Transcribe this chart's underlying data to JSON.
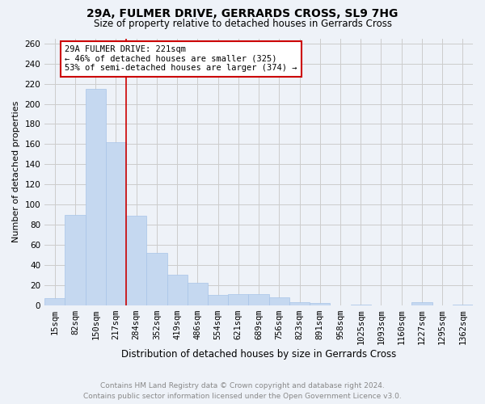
{
  "title": "29A, FULMER DRIVE, GERRARDS CROSS, SL9 7HG",
  "subtitle": "Size of property relative to detached houses in Gerrards Cross",
  "xlabel": "Distribution of detached houses by size in Gerrards Cross",
  "ylabel": "Number of detached properties",
  "footer_line1": "Contains HM Land Registry data © Crown copyright and database right 2024.",
  "footer_line2": "Contains public sector information licensed under the Open Government Licence v3.0.",
  "categories": [
    "15sqm",
    "82sqm",
    "150sqm",
    "217sqm",
    "284sqm",
    "352sqm",
    "419sqm",
    "486sqm",
    "554sqm",
    "621sqm",
    "689sqm",
    "756sqm",
    "823sqm",
    "891sqm",
    "958sqm",
    "1025sqm",
    "1093sqm",
    "1160sqm",
    "1227sqm",
    "1295sqm",
    "1362sqm"
  ],
  "values": [
    7,
    90,
    215,
    162,
    89,
    52,
    30,
    22,
    10,
    11,
    11,
    8,
    3,
    2,
    0,
    1,
    0,
    0,
    3,
    0,
    1
  ],
  "bar_color": "#c5d8f0",
  "bar_edge_color": "#a8c4e8",
  "property_line_x": 3.5,
  "annotation_text": "29A FULMER DRIVE: 221sqm\n← 46% of detached houses are smaller (325)\n53% of semi-detached houses are larger (374) →",
  "annotation_box_facecolor": "#ffffff",
  "annotation_box_edgecolor": "#cc0000",
  "property_line_color": "#cc0000",
  "ylim": [
    0,
    265
  ],
  "yticks": [
    0,
    20,
    40,
    60,
    80,
    100,
    120,
    140,
    160,
    180,
    200,
    220,
    240,
    260
  ],
  "grid_color": "#cccccc",
  "bg_color": "#eef2f8",
  "title_fontsize": 10,
  "subtitle_fontsize": 8.5,
  "xlabel_fontsize": 8.5,
  "ylabel_fontsize": 8,
  "footer_fontsize": 6.5,
  "tick_fontsize": 7.5,
  "annotation_fontsize": 7.5
}
